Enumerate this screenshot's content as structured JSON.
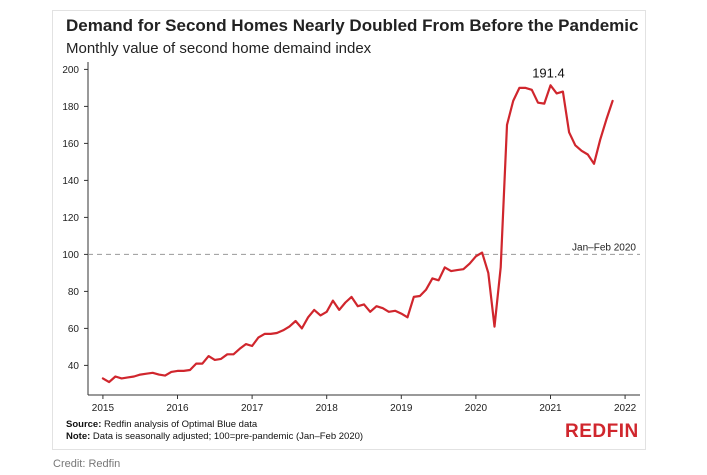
{
  "chart_data": {
    "type": "line",
    "title": "Demand for Second Homes Nearly Doubled From Before the Pandemic",
    "subtitle": "Monthly value of second home demaind index",
    "xlabel": "",
    "ylabel": "",
    "xlim": [
      2014.8,
      2022.2
    ],
    "ylim": [
      24,
      204
    ],
    "x_ticks": [
      "2015",
      "2016",
      "2017",
      "2018",
      "2019",
      "2020",
      "2021",
      "2022"
    ],
    "y_ticks": [
      40,
      60,
      80,
      100,
      120,
      140,
      160,
      180,
      200
    ],
    "grid": false,
    "reference_line": {
      "value": 100,
      "label": "Jan–Feb 2020",
      "style": "dashed"
    },
    "annotations": [
      {
        "text": "191.4",
        "x": 2021.0,
        "y": 191.4
      }
    ],
    "series": [
      {
        "color": "#d0262d",
        "x": [
          2015.0,
          2015.083,
          2015.167,
          2015.25,
          2015.333,
          2015.417,
          2015.5,
          2015.583,
          2015.667,
          2015.75,
          2015.833,
          2015.917,
          2016.0,
          2016.083,
          2016.167,
          2016.25,
          2016.333,
          2016.417,
          2016.5,
          2016.583,
          2016.667,
          2016.75,
          2016.833,
          2016.917,
          2017.0,
          2017.083,
          2017.167,
          2017.25,
          2017.333,
          2017.417,
          2017.5,
          2017.583,
          2017.667,
          2017.75,
          2017.833,
          2017.917,
          2018.0,
          2018.083,
          2018.167,
          2018.25,
          2018.333,
          2018.417,
          2018.5,
          2018.583,
          2018.667,
          2018.75,
          2018.833,
          2018.917,
          2019.0,
          2019.083,
          2019.167,
          2019.25,
          2019.333,
          2019.417,
          2019.5,
          2019.583,
          2019.667,
          2019.75,
          2019.833,
          2019.917,
          2020.0,
          2020.083,
          2020.167,
          2020.25,
          2020.333,
          2020.417,
          2020.5,
          2020.583,
          2020.667,
          2020.75,
          2020.833,
          2020.917,
          2021.0,
          2021.083,
          2021.167,
          2021.25,
          2021.333,
          2021.417,
          2021.5,
          2021.583,
          2021.667,
          2021.75,
          2021.833
        ],
        "y": [
          33,
          31,
          34,
          33,
          33.5,
          34,
          35,
          35.5,
          36,
          35,
          34.5,
          36.5,
          37,
          37,
          37.5,
          41,
          41,
          45,
          43,
          43.5,
          46,
          46,
          49,
          51.5,
          50.5,
          55,
          57,
          57,
          57.5,
          59,
          61,
          64,
          60,
          66,
          70,
          67,
          69,
          75,
          70,
          74,
          77,
          72,
          73,
          69,
          72,
          71,
          69,
          69.5,
          68,
          66,
          77,
          77.5,
          81,
          87,
          86,
          93,
          91,
          91.5,
          92,
          95,
          99,
          101,
          90,
          61,
          93,
          170,
          183,
          190,
          190,
          189,
          182,
          181.5,
          191.4,
          187,
          188,
          166,
          159,
          156,
          154,
          149,
          162,
          173,
          183
        ]
      }
    ]
  },
  "footer": {
    "source_label": "Source:",
    "source_text": "Redfin analysis of Optimal Blue data",
    "note_label": "Note:",
    "note_text": "Data is seasonally adjusted; 100=pre-pandemic (Jan–Feb 2020)"
  },
  "logo_text": "REDFIN",
  "credit": "Credit: Redfin"
}
